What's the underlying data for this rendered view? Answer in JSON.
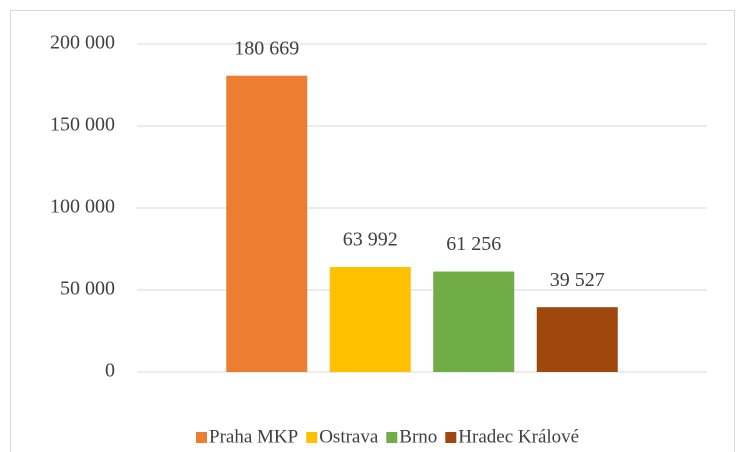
{
  "chart_data": {
    "type": "bar",
    "categories": [
      null
    ],
    "series": [
      {
        "name": "Praha MKP",
        "color": "#ED7D31",
        "values": [
          180669
        ],
        "value_labels": [
          "180 669"
        ]
      },
      {
        "name": "Ostrava",
        "color": "#FFC000",
        "values": [
          63992
        ],
        "value_labels": [
          "63 992"
        ]
      },
      {
        "name": "Brno",
        "color": "#70AD47",
        "values": [
          61256
        ],
        "value_labels": [
          "61 256"
        ]
      },
      {
        "name": "Hradec Králové",
        "color": "#9E480E",
        "values": [
          39527
        ],
        "value_labels": [
          "39 527"
        ]
      }
    ],
    "ylim": [
      0,
      200000
    ],
    "yticks": [
      0,
      {
        "value": 50000,
        "label": "50 000"
      },
      {
        "value": 100000,
        "label": "100 000"
      },
      {
        "value": 150000,
        "label": "150 000"
      },
      {
        "value": 200000,
        "label": "200 000"
      }
    ],
    "grid": true,
    "legend": "bottom"
  }
}
